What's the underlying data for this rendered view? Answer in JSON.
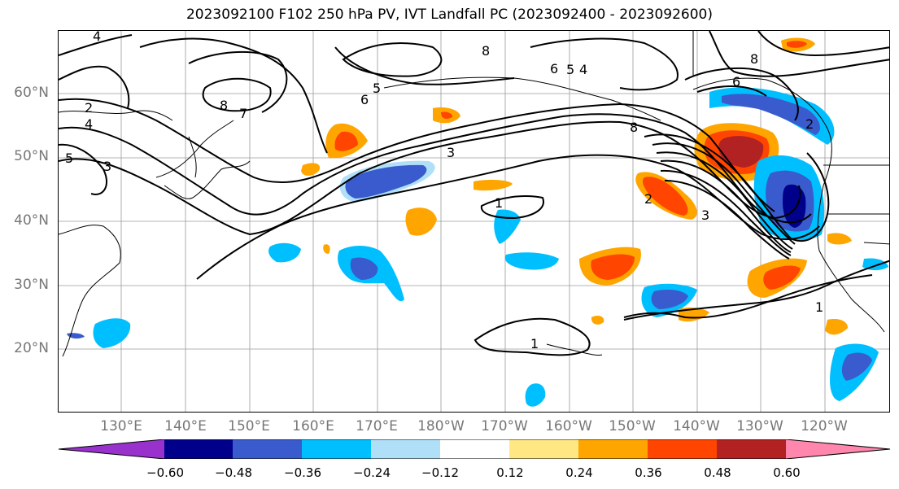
{
  "title": "2023092100 F102 250 hPa PV, IVT Landfall PC (2023092400 - 2023092600)",
  "lat_labels": [
    "60°N",
    "50°N",
    "40°N",
    "30°N",
    "20°N"
  ],
  "lon_labels": [
    "130°E",
    "140°E",
    "150°E",
    "160°E",
    "170°E",
    "180°W",
    "170°W",
    "160°W",
    "150°W",
    "140°W",
    "130°W",
    "120°W"
  ],
  "contour_labels": [
    "4",
    "2",
    "4",
    "5",
    "8",
    "7",
    "5",
    "6",
    "3",
    "8",
    "6",
    "5",
    "4",
    "8",
    "6",
    "2",
    "8",
    "1",
    "3",
    "3",
    "2",
    "1",
    "1"
  ],
  "colorbar": {
    "ticks": [
      "−0.60",
      "−0.48",
      "−0.36",
      "−0.24",
      "−0.12",
      "0.12",
      "0.24",
      "0.36",
      "0.48",
      "0.60"
    ],
    "colors": [
      "#9932cc",
      "#00008b",
      "#3a5bcd",
      "#00bfff",
      "#b0e0f8",
      "#ffffff",
      "#ffe884",
      "#ffa500",
      "#ff4500",
      "#b22222",
      "#ff86ad"
    ]
  }
}
